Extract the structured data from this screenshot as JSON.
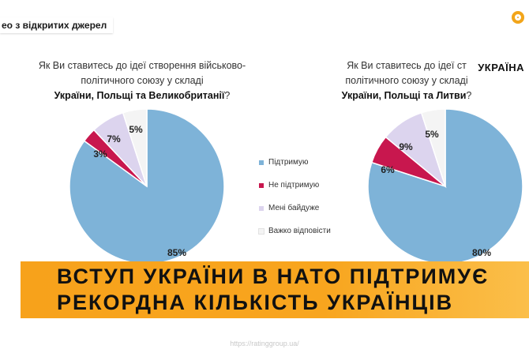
{
  "source_tag": "ео з відкритих джерел",
  "country_tag": "УКРАЇНА",
  "website": "https://ratinggroup.ua/",
  "banner": {
    "line1": "ВСТУП УКРАЇНИ В НАТО ПІДТРИМУЄ",
    "line2": "РЕКОРДНА КІЛЬКІСТЬ УКРАЇНЦІВ"
  },
  "colors": {
    "support": "#7eb3d8",
    "not_support": "#c8174e",
    "indifferent": "#dcd4ee",
    "hard_to_say": "#f4f4f4",
    "banner": "#f7a21b"
  },
  "chart_data": [
    {
      "type": "pie",
      "title_lines": [
        "Як Ви ставитесь до ідеї створення військово-",
        "політичного союзу у складі"
      ],
      "title_bold": "України, Польщі та Великобританії",
      "title_suffix": "?",
      "categories": [
        "Підтримую",
        "Не підтримую",
        "Мені байдуже",
        "Важко відповісти"
      ],
      "values": [
        85,
        3,
        7,
        5
      ],
      "labels": [
        "85%",
        "3%",
        "7%",
        "5%"
      ],
      "legend_position": "right"
    },
    {
      "type": "pie",
      "title_lines": [
        "Як Ви ставитесь до ідеї ст",
        "політичного союзу у складі"
      ],
      "title_bold": "України, Польщі та Литви",
      "title_suffix": "?",
      "categories": [
        "Підтримую",
        "Не підтримую",
        "Мені байдуже",
        "Важко відповісти"
      ],
      "values": [
        80,
        6,
        9,
        5
      ],
      "labels": [
        "80%",
        "6%",
        "9%",
        "5%"
      ]
    }
  ],
  "legend": [
    {
      "label": "Підтримую",
      "color_key": "support"
    },
    {
      "label": "Не підтримую",
      "color_key": "not_support"
    },
    {
      "label": "Мені байдуже",
      "color_key": "indifferent"
    },
    {
      "label": "Важко відповісти",
      "color_key": "hard_to_say"
    }
  ]
}
